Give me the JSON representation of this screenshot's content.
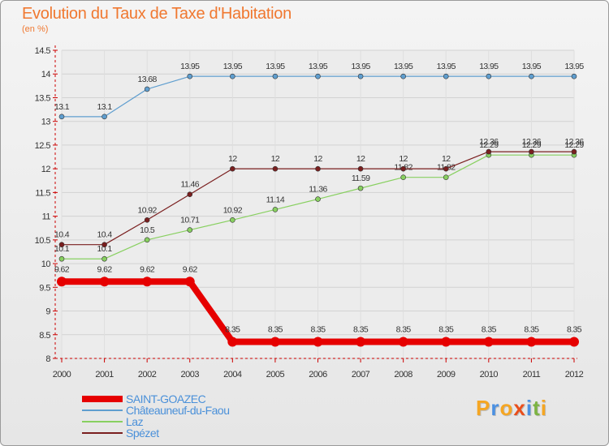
{
  "title": "Evolution du Taux de Taxe d'Habitation",
  "unit": "(en %)",
  "logo": {
    "letters": [
      "P",
      "r",
      "o",
      "x",
      "i",
      "t",
      "i"
    ],
    "colors": [
      "#f5a623",
      "#4a90e2",
      "#f5a623",
      "#e94e1b",
      "#4a90e2",
      "#7cb342",
      "#f5a623"
    ]
  },
  "chart_data": {
    "type": "line",
    "categories": [
      "2000",
      "2001",
      "2002",
      "2003",
      "2004",
      "2005",
      "2006",
      "2007",
      "2008",
      "2009",
      "2010",
      "2011",
      "2012"
    ],
    "ylim": [
      8,
      14.5
    ],
    "yticks": [
      8,
      8.5,
      9,
      9.5,
      10,
      10.5,
      11,
      11.5,
      12,
      12.5,
      13,
      13.5,
      14,
      14.5
    ],
    "grid": true,
    "series": [
      {
        "name": "SAINT-GOAZEC",
        "color": "#e60000",
        "width": 8,
        "marker": 6,
        "values": [
          9.62,
          9.62,
          9.62,
          9.62,
          8.35,
          8.35,
          8.35,
          8.35,
          8.35,
          8.35,
          8.35,
          8.35,
          8.35
        ]
      },
      {
        "name": "Châteauneuf-du-Faou",
        "color": "#5f9ecf",
        "width": 1.2,
        "marker": 3,
        "values": [
          13.1,
          13.1,
          13.68,
          13.95,
          13.95,
          13.95,
          13.95,
          13.95,
          13.95,
          13.95,
          13.95,
          13.95,
          13.95
        ]
      },
      {
        "name": "Laz",
        "color": "#88d060",
        "width": 1.2,
        "marker": 3,
        "values": [
          10.1,
          10.1,
          10.5,
          10.71,
          10.92,
          11.14,
          11.36,
          11.59,
          11.82,
          11.82,
          12.29,
          12.29,
          12.29
        ]
      },
      {
        "name": "Spézet",
        "color": "#7a1f1f",
        "width": 1.2,
        "marker": 3,
        "values": [
          10.4,
          10.4,
          10.92,
          11.46,
          12,
          12,
          12,
          12,
          12,
          12,
          12.36,
          12.36,
          12.36
        ]
      }
    ]
  }
}
